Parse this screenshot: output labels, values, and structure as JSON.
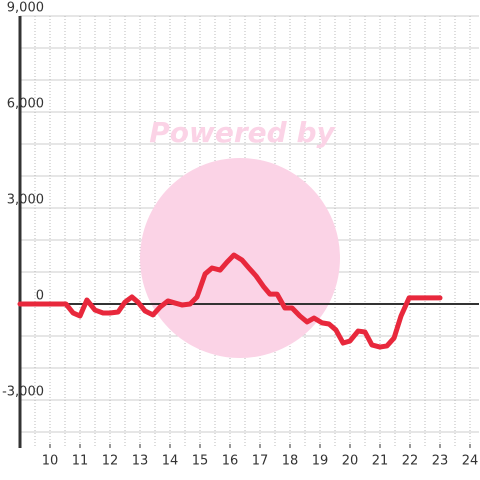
{
  "chart_data": {
    "type": "line",
    "watermark": "Powered by",
    "x": [
      9,
      10.53,
      10.77,
      11,
      11.23,
      11.5,
      11.77,
      12,
      12.27,
      12.5,
      12.73,
      12.93,
      13.17,
      13.43,
      13.67,
      13.93,
      14.17,
      14.4,
      14.67,
      14.9,
      15.17,
      15.4,
      15.67,
      15.9,
      16.13,
      16.4,
      16.63,
      16.87,
      17.13,
      17.33,
      17.57,
      17.83,
      18.07,
      18.33,
      18.57,
      18.8,
      19.07,
      19.3,
      19.53,
      19.77,
      20,
      20.27,
      20.5,
      20.73,
      21,
      21.23,
      21.47,
      21.7,
      21.97,
      22.2,
      23
    ],
    "series": [
      {
        "color": "#e8283c",
        "values": [
          0,
          0,
          -280,
          -375,
          125,
          -190,
          -280,
          -280,
          -250,
          60,
          220,
          60,
          -220,
          -340,
          -95,
          95,
          30,
          -30,
          0,
          220,
          940,
          1125,
          1060,
          1310,
          1530,
          1375,
          1125,
          875,
          530,
          310,
          310,
          -125,
          -125,
          -375,
          -560,
          -440,
          -590,
          -625,
          -810,
          -1220,
          -1155,
          -845,
          -875,
          -1280,
          -1345,
          -1310,
          -1060,
          -375,
          190,
          190,
          190
        ]
      }
    ],
    "xlim": [
      9,
      24.3
    ],
    "xticks": [
      10,
      11,
      12,
      13,
      14,
      15,
      16,
      17,
      18,
      19,
      20,
      21,
      22,
      23,
      24
    ],
    "xminorticks": [
      9.5,
      10,
      10.5,
      11,
      11.5,
      12,
      12.5,
      13,
      13.5,
      14,
      14.5,
      15,
      15.5,
      16,
      16.5,
      17,
      17.5,
      18,
      18.5,
      19,
      19.5,
      20,
      20.5,
      21,
      21.5,
      22,
      22.5,
      23,
      23.5,
      24
    ],
    "ylim": [
      -4500,
      9000
    ],
    "yticks": [
      {
        "value": -3000,
        "label": "-3,000"
      },
      0,
      {
        "value": 3000,
        "label": "3,000"
      },
      {
        "value": 6000,
        "label": "6,000"
      },
      {
        "value": 9000,
        "label": "9,000"
      }
    ],
    "yminorticks": [
      -4000,
      -3000,
      -2000,
      -1000,
      1000,
      2000,
      3000,
      4000,
      5000,
      6000,
      7000,
      8000,
      9000
    ],
    "grid": true
  }
}
